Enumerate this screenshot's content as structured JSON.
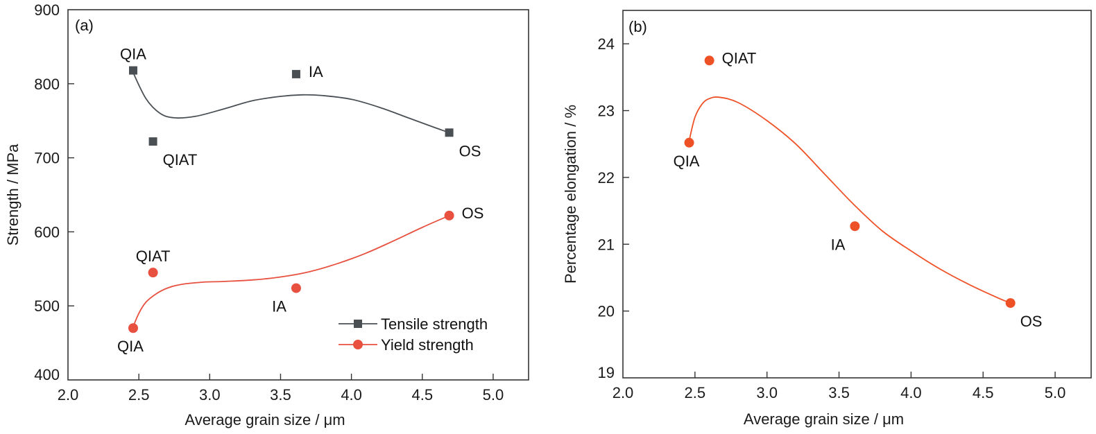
{
  "chart_data": [
    {
      "type": "scatter",
      "panel_label": "(a)",
      "title": "",
      "xlabel": "Average grain size / μm",
      "ylabel": "Strength / MPa",
      "xlim": [
        2.0,
        5.25
      ],
      "ylim": [
        400,
        900
      ],
      "xticks": [
        2.0,
        2.5,
        3.0,
        3.5,
        4.0,
        4.5,
        5.0
      ],
      "xtick_labels": [
        "2.0",
        "2.5",
        "3.0",
        "3.5",
        "4.0",
        "4.5",
        "5.0"
      ],
      "yticks": [
        400,
        500,
        600,
        700,
        800,
        900
      ],
      "ytick_labels": [
        "400",
        "500",
        "600",
        "700",
        "800",
        "900"
      ],
      "grid": false,
      "legend": {
        "placement": "bottom-right",
        "entries": [
          "Tensile strength",
          "Yield strength"
        ]
      },
      "series": [
        {
          "name": "Tensile strength",
          "marker": "square",
          "color": "#4a4f54",
          "points": [
            {
              "label": "QIA",
              "x": 2.46,
              "y": 818,
              "label_pos": "above"
            },
            {
              "label": "QIAT",
              "x": 2.6,
              "y": 722,
              "label_pos": "below-right"
            },
            {
              "label": "IA",
              "x": 3.61,
              "y": 813,
              "label_pos": "right"
            },
            {
              "label": "OS",
              "x": 4.69,
              "y": 734,
              "label_pos": "below-right"
            }
          ],
          "fit_curve": [
            [
              2.46,
              815
            ],
            [
              2.55,
              780
            ],
            [
              2.65,
              760
            ],
            [
              2.75,
              754
            ],
            [
              2.9,
              756
            ],
            [
              3.1,
              766
            ],
            [
              3.3,
              777
            ],
            [
              3.5,
              783
            ],
            [
              3.65,
              785
            ],
            [
              3.8,
              784
            ],
            [
              4.0,
              779
            ],
            [
              4.2,
              768
            ],
            [
              4.4,
              754
            ],
            [
              4.6,
              740
            ],
            [
              4.69,
              734
            ]
          ]
        },
        {
          "name": "Yield strength",
          "marker": "circle",
          "color": "#e8503f",
          "points": [
            {
              "label": "QIA",
              "x": 2.46,
              "y": 470,
              "label_pos": "below"
            },
            {
              "label": "QIAT",
              "x": 2.6,
              "y": 545,
              "label_pos": "above"
            },
            {
              "label": "IA",
              "x": 3.61,
              "y": 524,
              "label_pos": "below-left"
            },
            {
              "label": "OS",
              "x": 4.69,
              "y": 622,
              "label_pos": "right"
            }
          ],
          "fit_curve": [
            [
              2.46,
              472
            ],
            [
              2.5,
              490
            ],
            [
              2.55,
              505
            ],
            [
              2.62,
              516
            ],
            [
              2.7,
              524
            ],
            [
              2.8,
              529
            ],
            [
              2.95,
              532
            ],
            [
              3.1,
              533
            ],
            [
              3.3,
              535
            ],
            [
              3.5,
              539
            ],
            [
              3.7,
              546
            ],
            [
              3.9,
              557
            ],
            [
              4.1,
              571
            ],
            [
              4.3,
              588
            ],
            [
              4.5,
              606
            ],
            [
              4.69,
              622
            ]
          ]
        }
      ]
    },
    {
      "type": "scatter",
      "panel_label": "(b)",
      "title": "",
      "xlabel": "Average grain size / μm",
      "ylabel": "Percentage elongation / %",
      "xlim": [
        2.0,
        5.25
      ],
      "ylim": [
        19,
        24.5
      ],
      "xticks": [
        2.0,
        2.5,
        3.0,
        3.5,
        4.0,
        4.5,
        5.0
      ],
      "xtick_labels": [
        "2.0",
        "2.5",
        "3.0",
        "3.5",
        "4.0",
        "4.5",
        "5.0"
      ],
      "yticks": [
        19,
        20,
        21,
        22,
        23,
        24
      ],
      "ytick_labels": [
        "19",
        "20",
        "21",
        "22",
        "23",
        "24"
      ],
      "grid": false,
      "legend": null,
      "series": [
        {
          "name": "Percentage elongation",
          "marker": "circle",
          "color": "#ef5127",
          "points": [
            {
              "label": "QIA",
              "x": 2.46,
              "y": 22.52,
              "label_pos": "below"
            },
            {
              "label": "QIAT",
              "x": 2.6,
              "y": 23.75,
              "label_pos": "right"
            },
            {
              "label": "IA",
              "x": 3.61,
              "y": 21.27,
              "label_pos": "below-left"
            },
            {
              "label": "OS",
              "x": 4.69,
              "y": 20.12,
              "label_pos": "below-right"
            }
          ],
          "fit_curve": [
            [
              2.46,
              22.55
            ],
            [
              2.5,
              22.9
            ],
            [
              2.55,
              23.1
            ],
            [
              2.6,
              23.18
            ],
            [
              2.67,
              23.2
            ],
            [
              2.8,
              23.12
            ],
            [
              3.0,
              22.85
            ],
            [
              3.2,
              22.5
            ],
            [
              3.4,
              22.05
            ],
            [
              3.6,
              21.6
            ],
            [
              3.8,
              21.2
            ],
            [
              4.0,
              20.9
            ],
            [
              4.2,
              20.63
            ],
            [
              4.4,
              20.4
            ],
            [
              4.6,
              20.2
            ],
            [
              4.69,
              20.12
            ]
          ]
        }
      ]
    }
  ]
}
